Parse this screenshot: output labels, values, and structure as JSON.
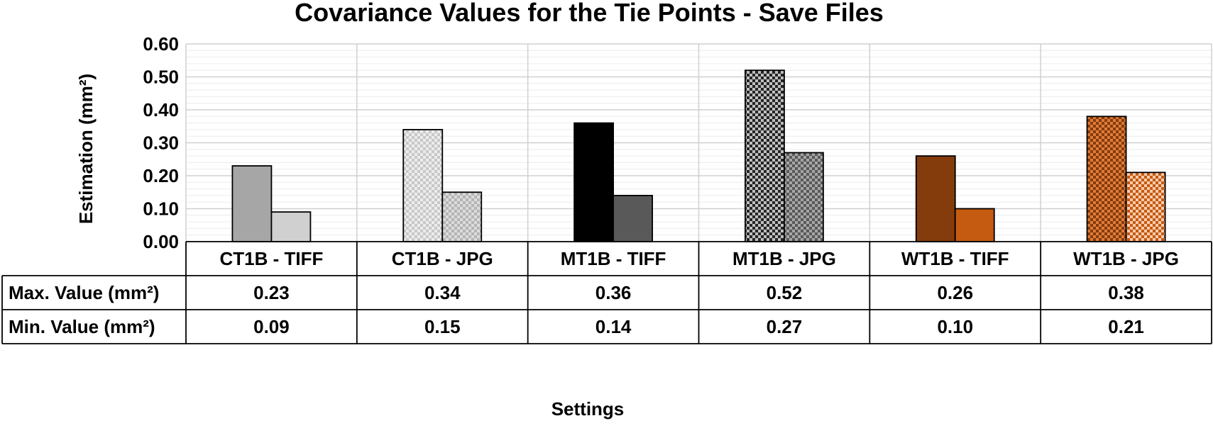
{
  "chart_data": {
    "type": "bar",
    "title": "Covariance Values for the Tie Points - Save Files",
    "xlabel": "Settings",
    "ylabel": "Estimation (mm²)",
    "ylim": [
      0,
      0.6
    ],
    "yticks": [
      "0.00",
      "0.10",
      "0.20",
      "0.30",
      "0.40",
      "0.50",
      "0.60"
    ],
    "grid": true,
    "categories": [
      "CT1B - TIFF",
      "CT1B - JPG",
      "MT1B - TIFF",
      "MT1B - JPG",
      "WT1B - TIFF",
      "WT1B - JPG"
    ],
    "series": [
      {
        "name": "Max. Value (mm²)",
        "values": [
          0.23,
          0.34,
          0.36,
          0.52,
          0.26,
          0.38
        ]
      },
      {
        "name": "Min. Value (mm²)",
        "values": [
          0.09,
          0.15,
          0.14,
          0.27,
          0.1,
          0.21
        ]
      }
    ],
    "table_values": [
      [
        "0.23",
        "0.34",
        "0.36",
        "0.52",
        "0.26",
        "0.38"
      ],
      [
        "0.09",
        "0.15",
        "0.14",
        "0.27",
        "0.10",
        "0.21"
      ]
    ],
    "bar_colors": {
      "max": [
        "#a6a6a6",
        "#c8c8c8",
        "#000000",
        "#333333",
        "#843c0c",
        "#c55a11"
      ],
      "min": [
        "#d0d0d0",
        "#d9d9d9",
        "#595959",
        "#7f7f7f",
        "#c55a11",
        "#f4a460"
      ]
    },
    "bar_patterns": {
      "max": [
        "solid",
        "checker-light",
        "solid",
        "checker-dark",
        "solid",
        "checker-orange"
      ],
      "min": [
        "solid",
        "checker-light",
        "solid",
        "checker-dark",
        "solid",
        "checker-orange"
      ]
    }
  }
}
